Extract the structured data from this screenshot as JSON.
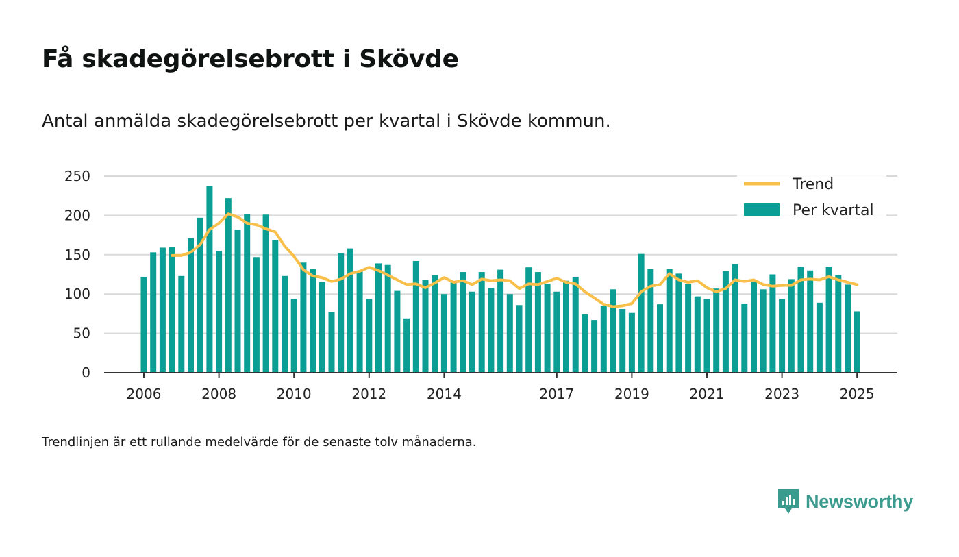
{
  "title": "Få skadegörelsebrott i Skövde",
  "subtitle": "Antal anmälda skadegörelsebrott per kvartal i Skövde kommun.",
  "footnote": "Trendlinjen är ett rullande medelvärde för de senaste tolv månaderna.",
  "brand": {
    "name": "Newsworthy",
    "icon": "newsworthy-logo-icon"
  },
  "colors": {
    "bars": "#0a9e95",
    "trend": "#f8c04a",
    "grid": "#d9d9d9",
    "axis": "#333333"
  },
  "chart_data": {
    "type": "bar",
    "title": "Få skadegörelsebrott i Skövde",
    "xlabel": "",
    "ylabel": "",
    "ylim": [
      0,
      250
    ],
    "yticks": [
      0,
      50,
      100,
      150,
      200,
      250
    ],
    "xticks": [
      "2006",
      "2008",
      "2010",
      "2012",
      "2014",
      "2017",
      "2019",
      "2021",
      "2023",
      "2025"
    ],
    "grid": true,
    "legend_position": "top-right",
    "x": [
      2006.0,
      2006.25,
      2006.5,
      2006.75,
      2007.0,
      2007.25,
      2007.5,
      2007.75,
      2008.0,
      2008.25,
      2008.5,
      2008.75,
      2009.0,
      2009.25,
      2009.5,
      2009.75,
      2010.0,
      2010.25,
      2010.5,
      2010.75,
      2011.0,
      2011.25,
      2011.5,
      2011.75,
      2012.0,
      2012.25,
      2012.5,
      2012.75,
      2013.0,
      2013.25,
      2013.5,
      2013.75,
      2014.0,
      2014.25,
      2014.5,
      2014.75,
      2015.0,
      2015.25,
      2015.5,
      2015.75,
      2016.0,
      2016.25,
      2016.5,
      2016.75,
      2017.0,
      2017.25,
      2017.5,
      2017.75,
      2018.0,
      2018.25,
      2018.5,
      2018.75,
      2019.0,
      2019.25,
      2019.5,
      2019.75,
      2020.0,
      2020.25,
      2020.5,
      2020.75,
      2021.0,
      2021.25,
      2021.5,
      2021.75,
      2022.0,
      2022.25,
      2022.5,
      2022.75,
      2023.0,
      2023.25,
      2023.5,
      2023.75,
      2024.0,
      2024.25,
      2024.5,
      2024.75,
      2025.0
    ],
    "series": [
      {
        "name": "Per kvartal",
        "type": "bar",
        "values": [
          122,
          153,
          159,
          160,
          123,
          171,
          197,
          237,
          155,
          222,
          182,
          202,
          147,
          201,
          169,
          123,
          94,
          140,
          132,
          115,
          77,
          152,
          158,
          129,
          94,
          139,
          137,
          104,
          69,
          142,
          118,
          124,
          100,
          115,
          128,
          103,
          128,
          108,
          131,
          100,
          86,
          134,
          128,
          113,
          103,
          117,
          122,
          74,
          67,
          85,
          106,
          81,
          76,
          151,
          132,
          87,
          132,
          126,
          113,
          97,
          94,
          107,
          129,
          138,
          88,
          116,
          106,
          125,
          94,
          119,
          135,
          130,
          89,
          135,
          124,
          112,
          78
        ]
      },
      {
        "name": "Trend",
        "type": "line",
        "x": [
          2006.75,
          2007.0,
          2007.25,
          2007.5,
          2007.75,
          2008.0,
          2008.25,
          2008.5,
          2008.75,
          2009.0,
          2009.25,
          2009.5,
          2009.75,
          2010.0,
          2010.25,
          2010.5,
          2010.75,
          2011.0,
          2011.25,
          2011.5,
          2011.75,
          2012.0,
          2012.25,
          2012.5,
          2012.75,
          2013.0,
          2013.25,
          2013.5,
          2013.75,
          2014.0,
          2014.25,
          2014.5,
          2014.75,
          2015.0,
          2015.25,
          2015.5,
          2015.75,
          2016.0,
          2016.25,
          2016.5,
          2016.75,
          2017.0,
          2017.25,
          2017.5,
          2017.75,
          2018.0,
          2018.25,
          2018.5,
          2018.75,
          2019.0,
          2019.25,
          2019.5,
          2019.75,
          2020.0,
          2020.25,
          2020.5,
          2020.75,
          2021.0,
          2021.25,
          2021.5,
          2021.75,
          2022.0,
          2022.25,
          2022.5,
          2022.75,
          2023.0,
          2023.25,
          2023.5,
          2023.75,
          2024.0,
          2024.25,
          2024.5,
          2024.75,
          2025.0
        ],
        "values": [
          149,
          149,
          153,
          163,
          182,
          190,
          202,
          198,
          190,
          188,
          183,
          179,
          161,
          148,
          131,
          123,
          121,
          116,
          119,
          126,
          129,
          134,
          130,
          124,
          118,
          112,
          113,
          108,
          114,
          121,
          115,
          117,
          112,
          119,
          117,
          118,
          117,
          107,
          113,
          112,
          116,
          120,
          115,
          113,
          103,
          95,
          87,
          84,
          85,
          88,
          103,
          110,
          112,
          126,
          118,
          115,
          117,
          108,
          103,
          107,
          118,
          116,
          118,
          112,
          110,
          111,
          111,
          118,
          119,
          118,
          122,
          118,
          115,
          112
        ]
      }
    ]
  }
}
